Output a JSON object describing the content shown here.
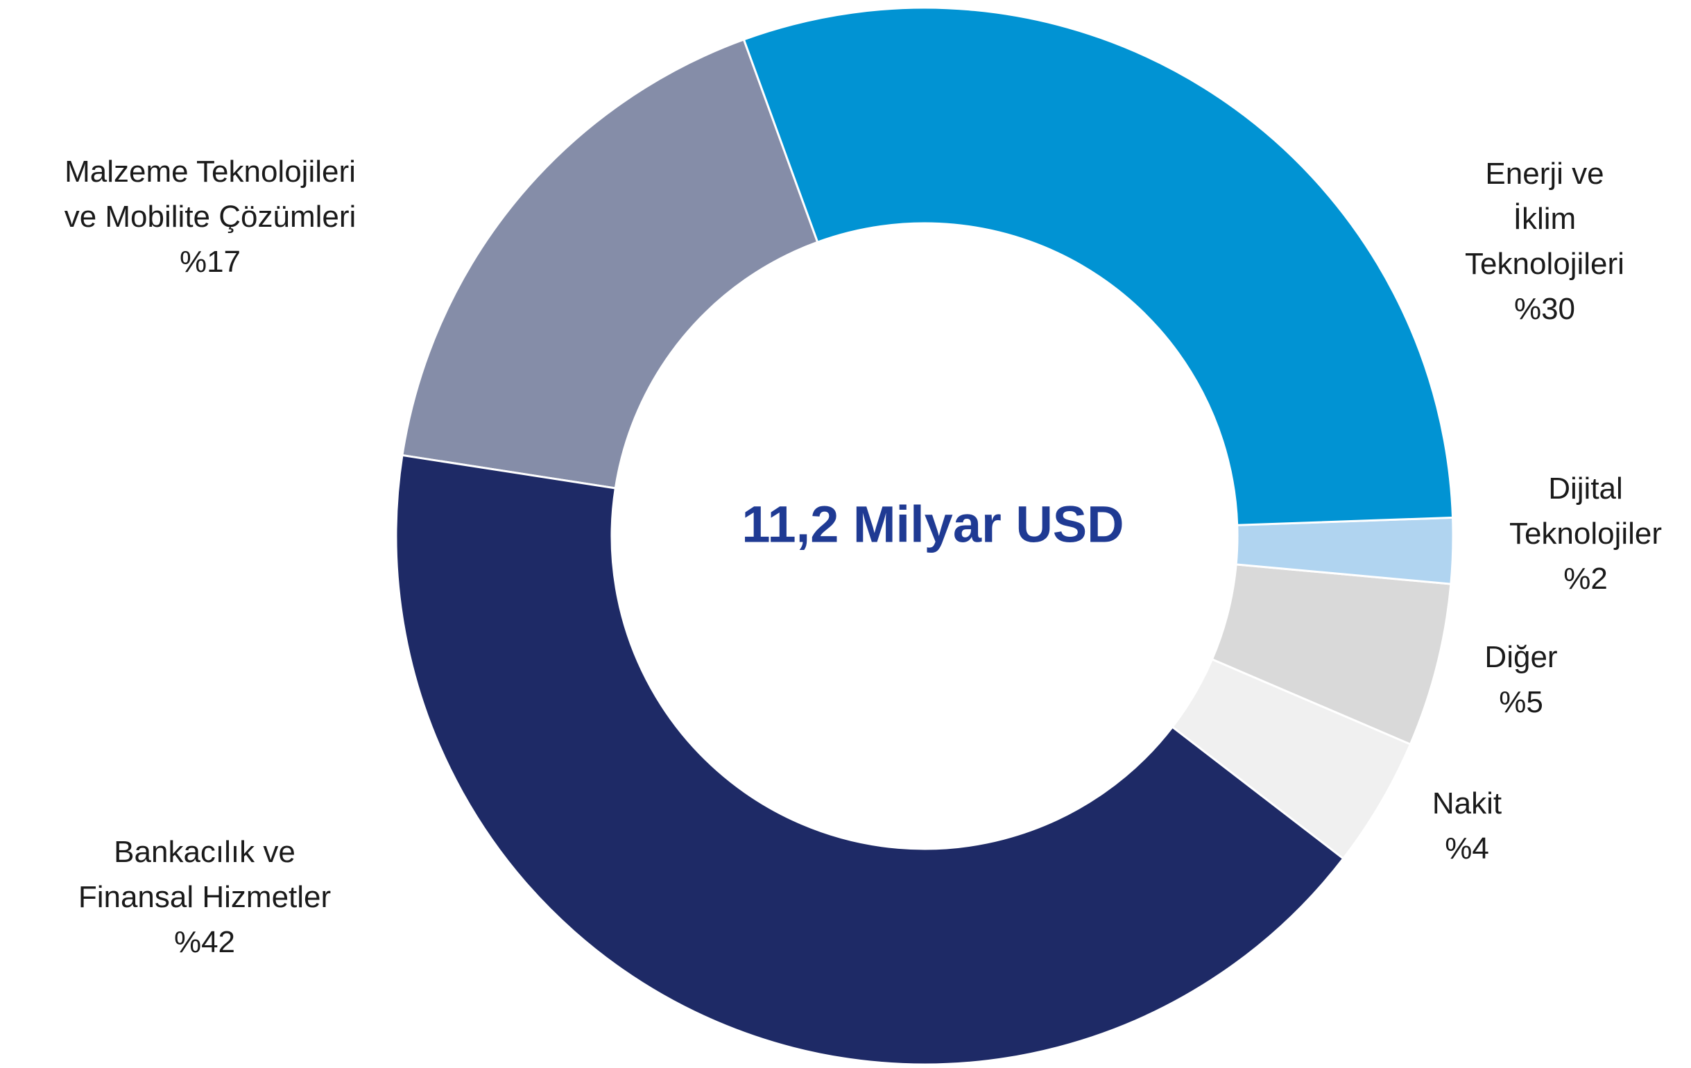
{
  "chart_data": {
    "type": "donut",
    "center_text": "11,2 Milyar USD",
    "categories": [
      "Enerji ve İklim\nTeknolojileri",
      "Dijital\nTeknolojiler",
      "Diğer",
      "Nakit",
      "Bankacılık ve\nFinansal Hizmetler",
      "Malzeme Teknolojileri\nve Mobilite Çözümleri"
    ],
    "values": [
      30,
      2,
      5,
      4,
      42,
      17
    ],
    "value_labels": [
      "%30",
      "%2",
      "%5",
      "%4",
      "%42",
      "%17"
    ],
    "colors": [
      "#0193d3",
      "#b0d4f0",
      "#d9d9d9",
      "#f0f0f0",
      "#1e2a66",
      "#858da8"
    ]
  }
}
